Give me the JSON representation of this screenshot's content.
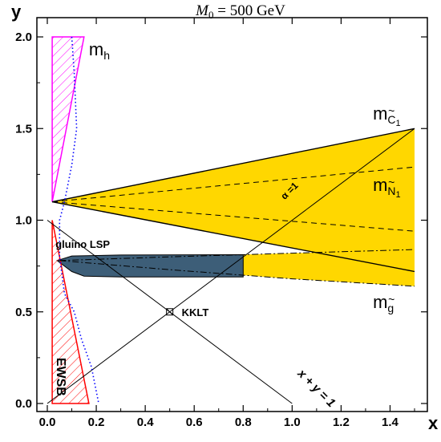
{
  "chart_data": {
    "type": "line",
    "title": "M0 = 500 GeV",
    "title_parts": {
      "symbol": "M",
      "subscript": "0",
      "rest": " = 500 GeV"
    },
    "xlabel": "x",
    "ylabel": "y",
    "xlim": [
      0,
      1.5
    ],
    "ylim": [
      0,
      2
    ],
    "x_ticks": [
      0.0,
      0.2,
      0.4,
      0.6,
      0.8,
      1.0,
      1.2,
      1.4
    ],
    "x_tick_labels": [
      "0.0",
      "0.2",
      "0.4",
      "0.6",
      "0.8",
      "1.0",
      "1.2",
      "1.4"
    ],
    "y_ticks": [
      0.0,
      0.5,
      1.0,
      1.5,
      2.0
    ],
    "y_tick_labels": [
      "0.0",
      "0.5",
      "1.0",
      "1.5",
      "2.0"
    ],
    "grid": false,
    "colors": {
      "band": "#FFD700",
      "gluino_lsp": "#3D5E78",
      "mh": "#FF00FF",
      "ewsb": "#FF0000",
      "dotted": "#0000FF",
      "line": "#000000"
    },
    "regions": [
      {
        "name": "mh",
        "label_main": "m",
        "label_sub": "h",
        "polygon": [
          [
            0.02,
            2.0
          ],
          [
            0.15,
            2.0
          ],
          [
            0.02,
            1.1
          ]
        ]
      },
      {
        "name": "EWSB",
        "label": "EWSB",
        "polygon": [
          [
            0.02,
            1.0
          ],
          [
            0.17,
            0.0
          ],
          [
            0.02,
            0.0
          ]
        ]
      },
      {
        "name": "chargino-neutralino-band",
        "polygon": [
          [
            0.02,
            1.1
          ],
          [
            1.5,
            1.5
          ],
          [
            1.5,
            0.72
          ]
        ]
      },
      {
        "name": "gluino-band",
        "polygon": [
          [
            0.05,
            0.78
          ],
          [
            0.5,
            0.8
          ],
          [
            1.0,
            0.82
          ],
          [
            1.5,
            0.84
          ],
          [
            1.5,
            0.64
          ],
          [
            1.0,
            0.68
          ],
          [
            0.5,
            0.73
          ],
          [
            0.05,
            0.78
          ]
        ]
      },
      {
        "name": "gluino LSP",
        "label": "gluino LSP",
        "polygon": [
          [
            0.04,
            0.78
          ],
          [
            0.1,
            0.805
          ],
          [
            0.3,
            0.81
          ],
          [
            0.8,
            0.812
          ],
          [
            0.8,
            0.69
          ],
          [
            0.3,
            0.69
          ],
          [
            0.15,
            0.695
          ],
          [
            0.1,
            0.72
          ]
        ]
      }
    ],
    "series": [
      {
        "name": "m_chargino_upper",
        "style": "solid",
        "points": [
          [
            0.02,
            1.1
          ],
          [
            1.5,
            1.5
          ]
        ]
      },
      {
        "name": "m_chargino_lower",
        "style": "solid",
        "points": [
          [
            0.02,
            1.1
          ],
          [
            1.5,
            0.72
          ]
        ]
      },
      {
        "name": "m_neutralino_upper",
        "style": "dashed",
        "points": [
          [
            0.02,
            1.1
          ],
          [
            1.5,
            1.29
          ]
        ]
      },
      {
        "name": "m_neutralino_lower",
        "style": "dashed",
        "points": [
          [
            0.02,
            1.1
          ],
          [
            1.5,
            0.94
          ]
        ]
      },
      {
        "name": "m_gluino_upper",
        "style": "dashdot",
        "points": [
          [
            0.05,
            0.78
          ],
          [
            0.5,
            0.8
          ],
          [
            1.0,
            0.82
          ],
          [
            1.5,
            0.84
          ]
        ]
      },
      {
        "name": "m_gluino_lower",
        "style": "dashdot",
        "points": [
          [
            0.05,
            0.78
          ],
          [
            0.5,
            0.73
          ],
          [
            1.0,
            0.68
          ],
          [
            1.5,
            0.64
          ]
        ]
      },
      {
        "name": "alpha_1",
        "style": "solid-thin",
        "points": [
          [
            0.0,
            0.0
          ],
          [
            1.5,
            1.5
          ]
        ]
      },
      {
        "name": "x_plus_y_1",
        "style": "solid-thin",
        "points": [
          [
            0.0,
            1.0
          ],
          [
            1.0,
            0.0
          ]
        ]
      },
      {
        "name": "mh_boundary_dotted",
        "style": "dotted",
        "points": [
          [
            0.1,
            2.0
          ],
          [
            0.11,
            1.8
          ],
          [
            0.12,
            1.5
          ],
          [
            0.1,
            1.3
          ],
          [
            0.07,
            1.1
          ],
          [
            0.05,
            1.0
          ],
          [
            0.05,
            0.8
          ],
          [
            0.07,
            0.6
          ],
          [
            0.11,
            0.5
          ],
          [
            0.14,
            0.35
          ],
          [
            0.18,
            0.2
          ],
          [
            0.21,
            0.0
          ]
        ]
      }
    ],
    "annotations": [
      {
        "name": "kklt",
        "text": "KKLT",
        "x": 0.5,
        "y": 0.5
      },
      {
        "name": "alpha-one",
        "text": "α =1",
        "x": 0.97,
        "y": 1.11,
        "rotate": -45
      },
      {
        "name": "x-plus-y",
        "text": "x + y = 1",
        "x": 1.02,
        "y": 0.16,
        "rotate": 45
      },
      {
        "name": "gluino-lsp",
        "text": "gluino LSP",
        "x": 0.23,
        "y": 0.85
      },
      {
        "name": "m-chargino",
        "main": "m",
        "sub": "C",
        "subsub": "1",
        "x": 1.33,
        "y": 1.55
      },
      {
        "name": "m-neutralino",
        "main": "m",
        "sub": "N",
        "subsub": "1",
        "x": 1.33,
        "y": 1.16
      },
      {
        "name": "m-gluino",
        "main": "m",
        "sub": "g",
        "x": 1.33,
        "y": 0.52
      }
    ]
  }
}
